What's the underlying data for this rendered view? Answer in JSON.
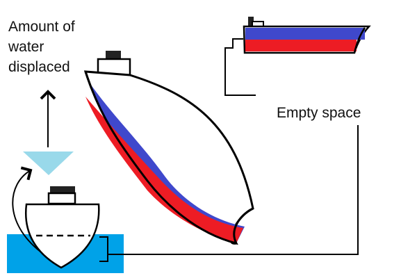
{
  "labels": {
    "water_line_1": "Amount of",
    "water_line_2": "water",
    "water_line_3": "displaced",
    "empty_space": "Empty space"
  },
  "colors": {
    "water": "#00a2e8",
    "displaced_water": "#99d9ea",
    "hull_stripe_blue": "#3f48cc",
    "hull_stripe_red": "#ed1c24",
    "outline": "#000000",
    "background": "#ffffff"
  }
}
